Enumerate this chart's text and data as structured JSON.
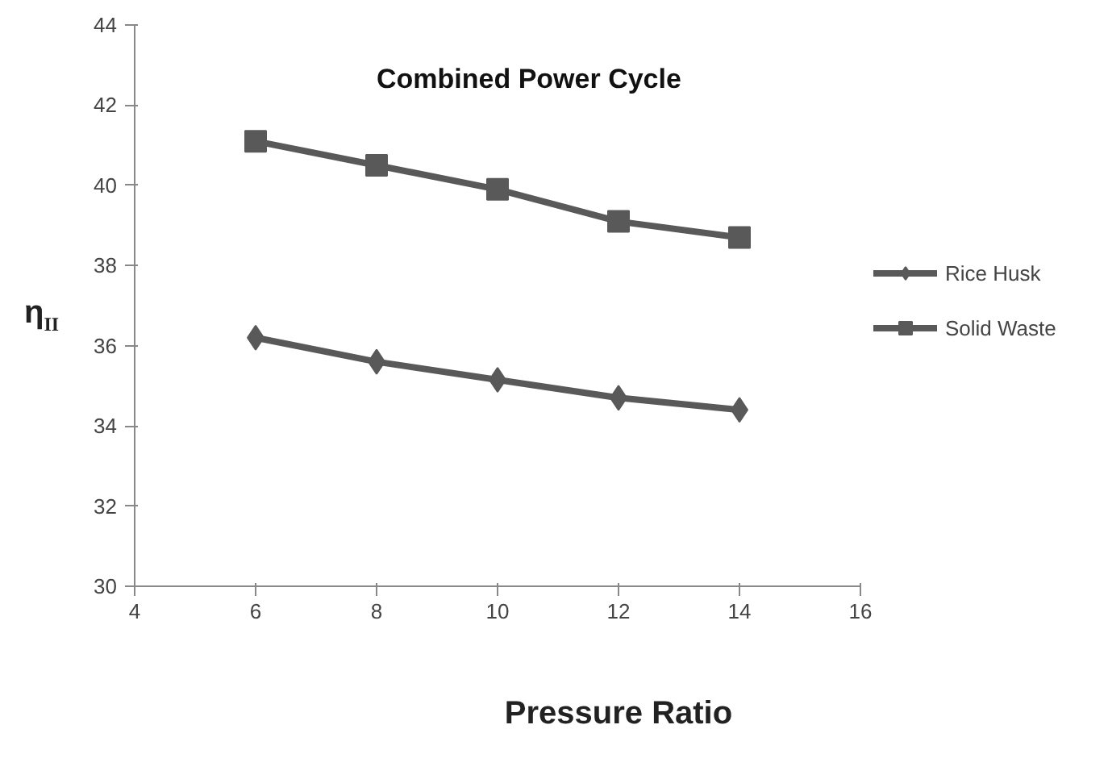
{
  "chart_data": {
    "type": "line",
    "title": "Combined Power Cycle",
    "xlabel": "Pressure Ratio",
    "ylabel": "η$_{II}$",
    "x": [
      6,
      8,
      10,
      12,
      14
    ],
    "series": [
      {
        "name": "Rice Husk",
        "color": "#595959",
        "marker": "diamond",
        "values": [
          36.2,
          35.6,
          35.15,
          34.7,
          34.4
        ]
      },
      {
        "name": "Solid Waste",
        "color": "#595959",
        "marker": "square",
        "values": [
          41.1,
          40.5,
          39.9,
          39.1,
          38.7
        ]
      }
    ],
    "xlim": [
      4,
      16
    ],
    "xticks": [
      4,
      6,
      8,
      10,
      12,
      14,
      16
    ],
    "ylim": [
      30,
      44
    ],
    "yticks": [
      30,
      32,
      34,
      36,
      38,
      40,
      42,
      44
    ],
    "grid": false,
    "legend": "right",
    "line_style": "solid"
  }
}
